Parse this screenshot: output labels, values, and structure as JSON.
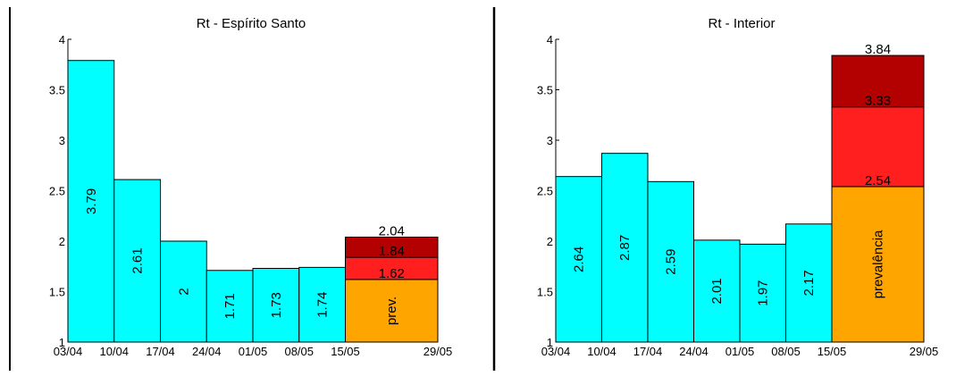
{
  "chart_data": [
    {
      "type": "bar",
      "title": "Rt - Espírito Santo",
      "ylim": [
        1,
        4
      ],
      "yticks": [
        "1",
        "1.5",
        "2",
        "2.5",
        "3",
        "3.5",
        "4"
      ],
      "xticks": [
        "03/04",
        "10/04",
        "17/04",
        "24/04",
        "01/05",
        "08/05",
        "15/05",
        "29/05"
      ],
      "bars": [
        {
          "start": "03/04",
          "end": "10/04",
          "value": 3.79,
          "label": "3.79"
        },
        {
          "start": "10/04",
          "end": "17/04",
          "value": 2.61,
          "label": "2.61"
        },
        {
          "start": "17/04",
          "end": "24/04",
          "value": 2.0,
          "label": "2"
        },
        {
          "start": "24/04",
          "end": "01/05",
          "value": 1.71,
          "label": "1.71"
        },
        {
          "start": "01/05",
          "end": "08/05",
          "value": 1.73,
          "label": "1.73"
        },
        {
          "start": "08/05",
          "end": "15/05",
          "value": 1.74,
          "label": "1.74"
        }
      ],
      "forecast": {
        "start": "15/05",
        "end": "29/05",
        "base_label": "prev.",
        "segments": [
          {
            "value": 1.62,
            "label": "1.62",
            "color": "#ffa500"
          },
          {
            "value": 1.84,
            "label": "1.84",
            "color": "#ff1f1f"
          },
          {
            "value": 2.04,
            "label": "2.04",
            "color": "#b30000"
          }
        ]
      },
      "bar_color": "#00ffff"
    },
    {
      "type": "bar",
      "title": "Rt - Interior",
      "ylim": [
        1,
        4
      ],
      "yticks": [
        "1",
        "1.5",
        "2",
        "2.5",
        "3",
        "3.5",
        "4"
      ],
      "xticks": [
        "03/04",
        "10/04",
        "17/04",
        "24/04",
        "01/05",
        "08/05",
        "15/05",
        "29/05"
      ],
      "bars": [
        {
          "start": "03/04",
          "end": "10/04",
          "value": 2.64,
          "label": "2.64"
        },
        {
          "start": "10/04",
          "end": "17/04",
          "value": 2.87,
          "label": "2.87"
        },
        {
          "start": "17/04",
          "end": "24/04",
          "value": 2.59,
          "label": "2.59"
        },
        {
          "start": "24/04",
          "end": "01/05",
          "value": 2.01,
          "label": "2.01"
        },
        {
          "start": "01/05",
          "end": "08/05",
          "value": 1.97,
          "label": "1.97"
        },
        {
          "start": "08/05",
          "end": "15/05",
          "value": 2.17,
          "label": "2.17"
        }
      ],
      "forecast": {
        "start": "15/05",
        "end": "29/05",
        "base_label": "prevalência",
        "segments": [
          {
            "value": 2.54,
            "label": "2.54",
            "color": "#ffa500"
          },
          {
            "value": 3.33,
            "label": "3.33",
            "color": "#ff1f1f"
          },
          {
            "value": 3.84,
            "label": "3.84",
            "color": "#b30000"
          }
        ]
      },
      "bar_color": "#00ffff"
    }
  ]
}
